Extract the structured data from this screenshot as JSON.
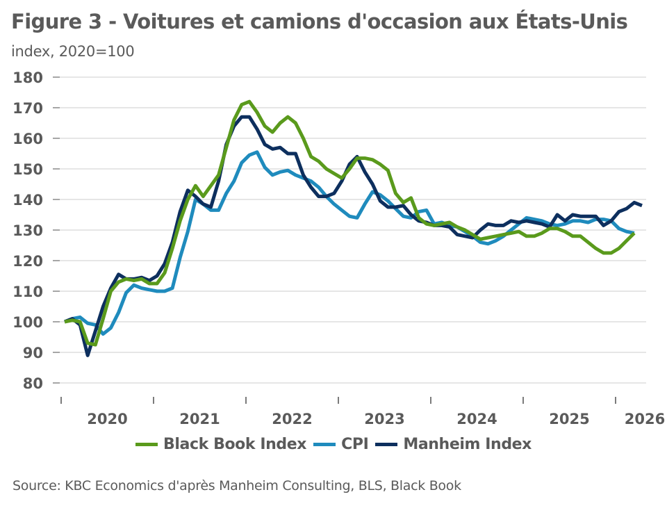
{
  "chart_data": {
    "type": "line",
    "title": "Figure 3 - Voitures et camions d'occasion aux États-Unis",
    "subtitle": "index, 2020=100",
    "xlabel": "",
    "ylabel": "",
    "ylim": [
      80,
      180
    ],
    "yticks": [
      80,
      90,
      100,
      110,
      120,
      130,
      140,
      150,
      160,
      170,
      180
    ],
    "ytick_labels": [
      "80",
      "90",
      "100",
      "110",
      "120",
      "130",
      "140",
      "150",
      "160",
      "170",
      "180"
    ],
    "xtick_labels": [
      "2020",
      "2021",
      "2022",
      "2023",
      "2024",
      "2025",
      "2026"
    ],
    "x_start": "2020-01",
    "x_frequency": "monthly",
    "grid": true,
    "legend_position": "bottom",
    "series": [
      {
        "name": "Black Book Index",
        "color": "#5a9a1c",
        "values": [
          100,
          100.5,
          100,
          93,
          92.5,
          101,
          110,
          113,
          114,
          113.5,
          114,
          112.5,
          112.5,
          116,
          124,
          133,
          140,
          144.5,
          141,
          144.5,
          148,
          157,
          166,
          171,
          172,
          168.5,
          164,
          162,
          165,
          167,
          165,
          160,
          154,
          152.5,
          150,
          148.5,
          147,
          150,
          153.5,
          153.5,
          153,
          151.5,
          149.5,
          142,
          139,
          140.5,
          134,
          132,
          131.5,
          132,
          132.5,
          131,
          130,
          128.5,
          127,
          127.5,
          128,
          128.5,
          129,
          129.5,
          128,
          128,
          129,
          130.5,
          130.5,
          129.5,
          128,
          128,
          126,
          124,
          122.5,
          122.5,
          124,
          126.5,
          129
        ]
      },
      {
        "name": "CPI",
        "color": "#1f8bbd",
        "values": [
          100,
          101,
          101.5,
          99.5,
          99,
          96,
          98,
          103,
          109.5,
          112,
          111,
          110.5,
          110,
          110,
          111,
          121,
          129.5,
          140,
          138.5,
          136.5,
          136.5,
          142,
          146,
          152,
          154.5,
          155.5,
          150.5,
          148,
          149,
          149.5,
          148,
          147,
          146,
          144,
          141,
          138.5,
          136.5,
          134.5,
          134,
          138.5,
          142.5,
          141.5,
          139.5,
          137,
          134.5,
          134,
          136,
          136.5,
          132,
          132.5,
          131.5,
          131,
          129.5,
          128,
          126,
          125.5,
          126.5,
          128,
          130,
          132,
          134,
          133.5,
          133,
          132,
          131.5,
          132,
          133,
          133,
          132.5,
          133.5,
          133.5,
          133,
          130.5,
          129.5,
          129
        ]
      },
      {
        "name": "Manheim Index",
        "color": "#0d2f5e",
        "values": [
          100,
          101,
          99,
          89,
          97,
          105,
          111,
          115.5,
          114,
          114,
          114.5,
          113.5,
          115,
          119,
          126,
          136,
          143,
          141,
          138.5,
          137.5,
          146,
          158,
          164,
          167,
          167,
          163,
          158,
          156.5,
          157,
          155,
          155,
          148,
          144,
          141,
          141,
          142,
          146,
          151.5,
          154,
          149,
          145,
          139.5,
          137.5,
          137.5,
          138,
          135,
          133,
          132.5,
          131.5,
          131.5,
          131,
          128.5,
          128,
          127.5,
          130,
          132,
          131.5,
          131.5,
          133,
          132.5,
          133,
          132.5,
          132,
          131,
          135,
          133,
          135,
          134.5,
          134.5,
          134.5,
          131.5,
          133,
          136,
          137,
          139,
          138
        ]
      }
    ]
  },
  "source": "Source: KBC Economics d'après Manheim Consulting, BLS, Black Book"
}
